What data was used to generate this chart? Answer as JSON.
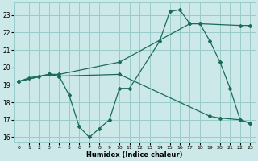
{
  "xlabel": "Humidex (Indice chaleur)",
  "bg_color": "#cce8e8",
  "grid_color": "#99cccc",
  "line_color": "#1a6b5a",
  "xlim": [
    -0.5,
    23.5
  ],
  "ylim": [
    15.7,
    23.7
  ],
  "yticks": [
    16,
    17,
    18,
    19,
    20,
    21,
    22,
    23
  ],
  "xticks": [
    0,
    1,
    2,
    3,
    4,
    5,
    6,
    7,
    8,
    9,
    10,
    11,
    12,
    13,
    14,
    15,
    16,
    17,
    18,
    19,
    20,
    21,
    22,
    23
  ],
  "line1_x": [
    0,
    1,
    2,
    3,
    4,
    5,
    6,
    7,
    8,
    9,
    10,
    11,
    14,
    15,
    16,
    17,
    18,
    19,
    20,
    21,
    22,
    23
  ],
  "line1_y": [
    19.2,
    19.4,
    19.5,
    19.6,
    19.5,
    18.4,
    16.6,
    16.0,
    16.5,
    17.0,
    18.8,
    18.8,
    21.5,
    23.2,
    23.3,
    22.5,
    22.5,
    21.5,
    20.3,
    18.8,
    17.0,
    16.8
  ],
  "line2_x": [
    0,
    3,
    4,
    10,
    17,
    18,
    22,
    23
  ],
  "line2_y": [
    19.2,
    19.6,
    19.6,
    20.3,
    22.5,
    22.5,
    22.4,
    22.4
  ],
  "line3_x": [
    0,
    3,
    4,
    10,
    19,
    20,
    22,
    23
  ],
  "line3_y": [
    19.2,
    19.6,
    19.5,
    19.6,
    17.2,
    17.1,
    17.0,
    16.8
  ]
}
